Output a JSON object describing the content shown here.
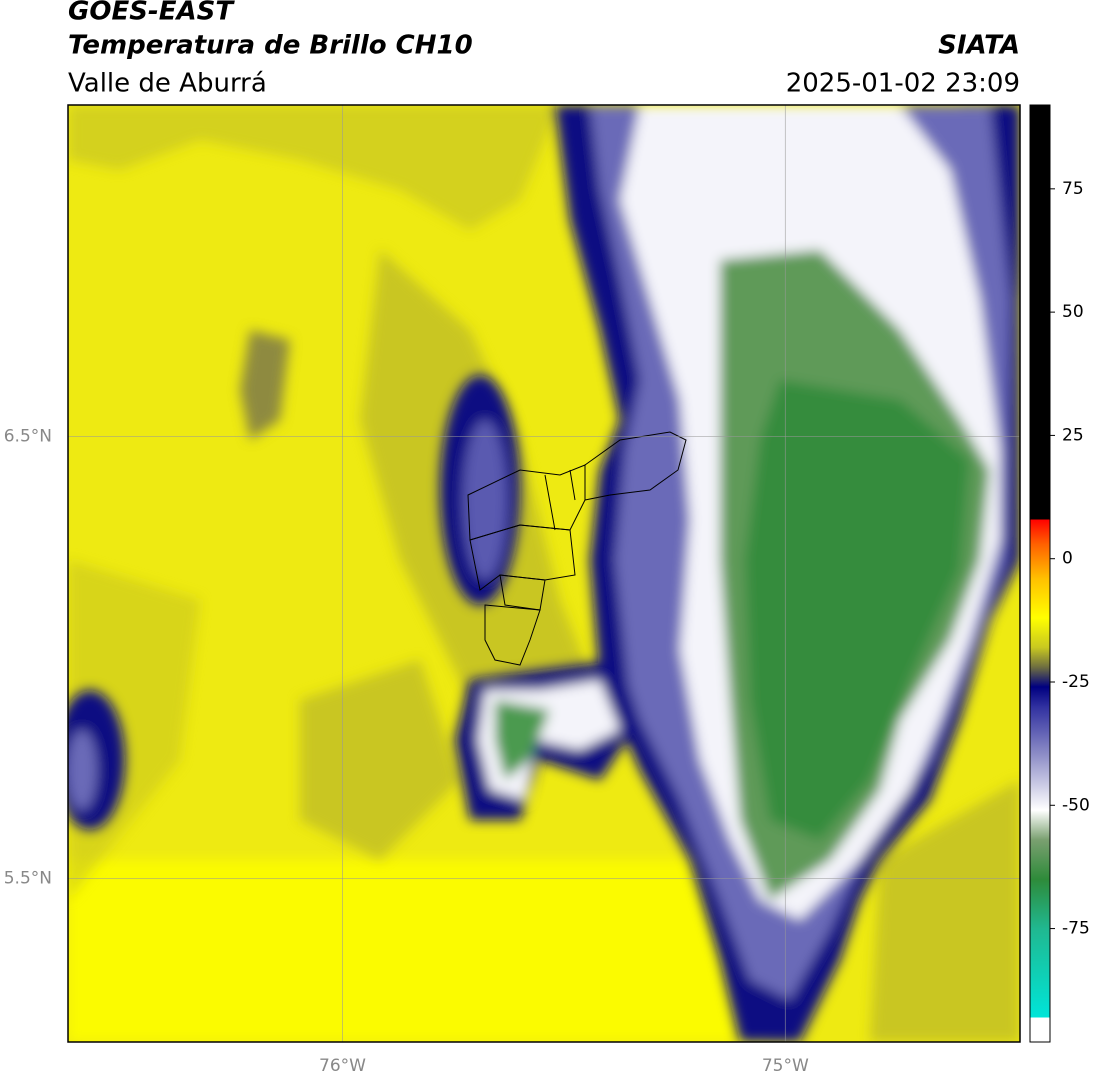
{
  "header": {
    "title": "GOES-EAST",
    "subtitle": "Temperatura de Brillo CH10",
    "region": "Valle de Aburrá",
    "source": "SIATA",
    "datetime": "2025-01-02 23:09"
  },
  "map": {
    "xlim": [
      -76.62,
      -74.47
    ],
    "ylim": [
      5.13,
      7.25
    ],
    "xticks": [
      {
        "value": -76,
        "label": "76°W"
      },
      {
        "value": -75,
        "label": "75°W"
      }
    ],
    "yticks": [
      {
        "value": 6.5,
        "label": "6.5°N"
      },
      {
        "value": 5.5,
        "label": "5.5°N"
      }
    ]
  },
  "colorbar": {
    "lim": [
      -98,
      92
    ],
    "ticks": [
      75,
      50,
      25,
      0,
      -25,
      -50,
      -75
    ],
    "stops": [
      {
        "value": -98,
        "color": "#ffffff"
      },
      {
        "value": -93,
        "color": "#ffffff"
      },
      {
        "value": -93,
        "color": "#00e5d8"
      },
      {
        "value": -75,
        "color": "#20b890"
      },
      {
        "value": -65,
        "color": "#2e8b3a"
      },
      {
        "value": -57,
        "color": "#7aa070"
      },
      {
        "value": -51,
        "color": "#ffffff"
      },
      {
        "value": -40,
        "color": "#9090c8"
      },
      {
        "value": -30,
        "color": "#3030a0"
      },
      {
        "value": -26,
        "color": "#000080"
      },
      {
        "value": -22,
        "color": "#6e6e40"
      },
      {
        "value": -18,
        "color": "#c8c820"
      },
      {
        "value": -12,
        "color": "#ffff00"
      },
      {
        "value": -4,
        "color": "#ffc000"
      },
      {
        "value": 3,
        "color": "#ff6000"
      },
      {
        "value": 8,
        "color": "#ff0000"
      },
      {
        "value": 8,
        "color": "#000000"
      },
      {
        "value": 92,
        "color": "#000000"
      }
    ]
  }
}
